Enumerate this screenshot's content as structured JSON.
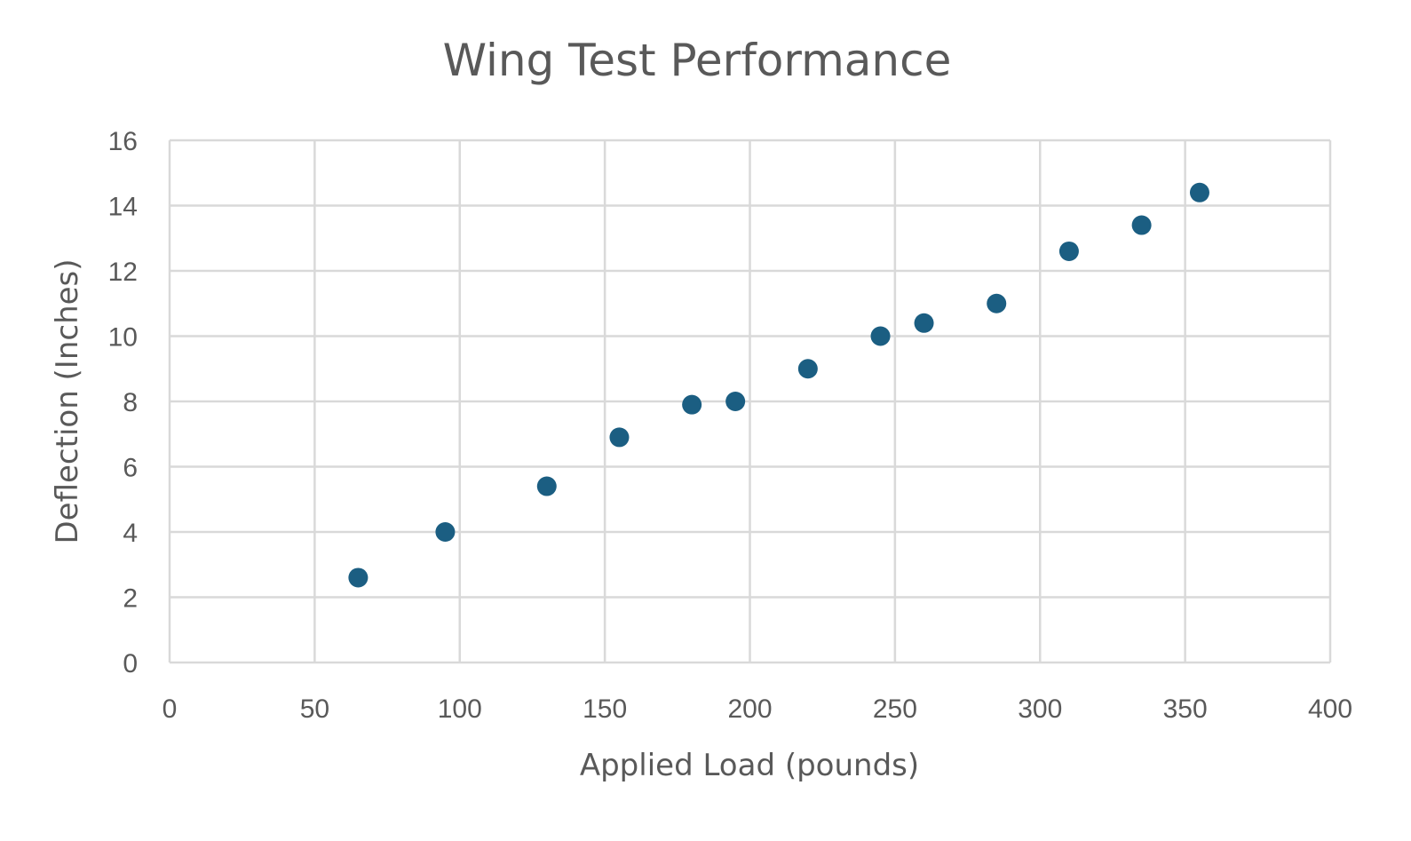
{
  "chart_data": {
    "type": "scatter",
    "title": "Wing Test Performance",
    "xlabel": "Applied Load (pounds)",
    "ylabel": "Deflection (Inches)",
    "xlim": [
      0,
      400
    ],
    "ylim": [
      0,
      16
    ],
    "x_ticks": [
      "0",
      "50",
      "100",
      "150",
      "200",
      "250",
      "300",
      "350",
      "400"
    ],
    "y_ticks": [
      "0",
      "2",
      "4",
      "6",
      "8",
      "10",
      "12",
      "14",
      "16"
    ],
    "grid": true,
    "legend": "none",
    "marker_color": "#1b5e82",
    "series": [
      {
        "x": [
          65,
          95,
          130,
          155,
          180,
          195,
          220,
          245,
          260,
          285,
          310,
          335,
          355
        ],
        "y": [
          2.6,
          4.0,
          5.4,
          6.9,
          7.9,
          8.0,
          9.0,
          10.0,
          10.4,
          11.0,
          12.6,
          13.4,
          14.4
        ]
      }
    ]
  }
}
